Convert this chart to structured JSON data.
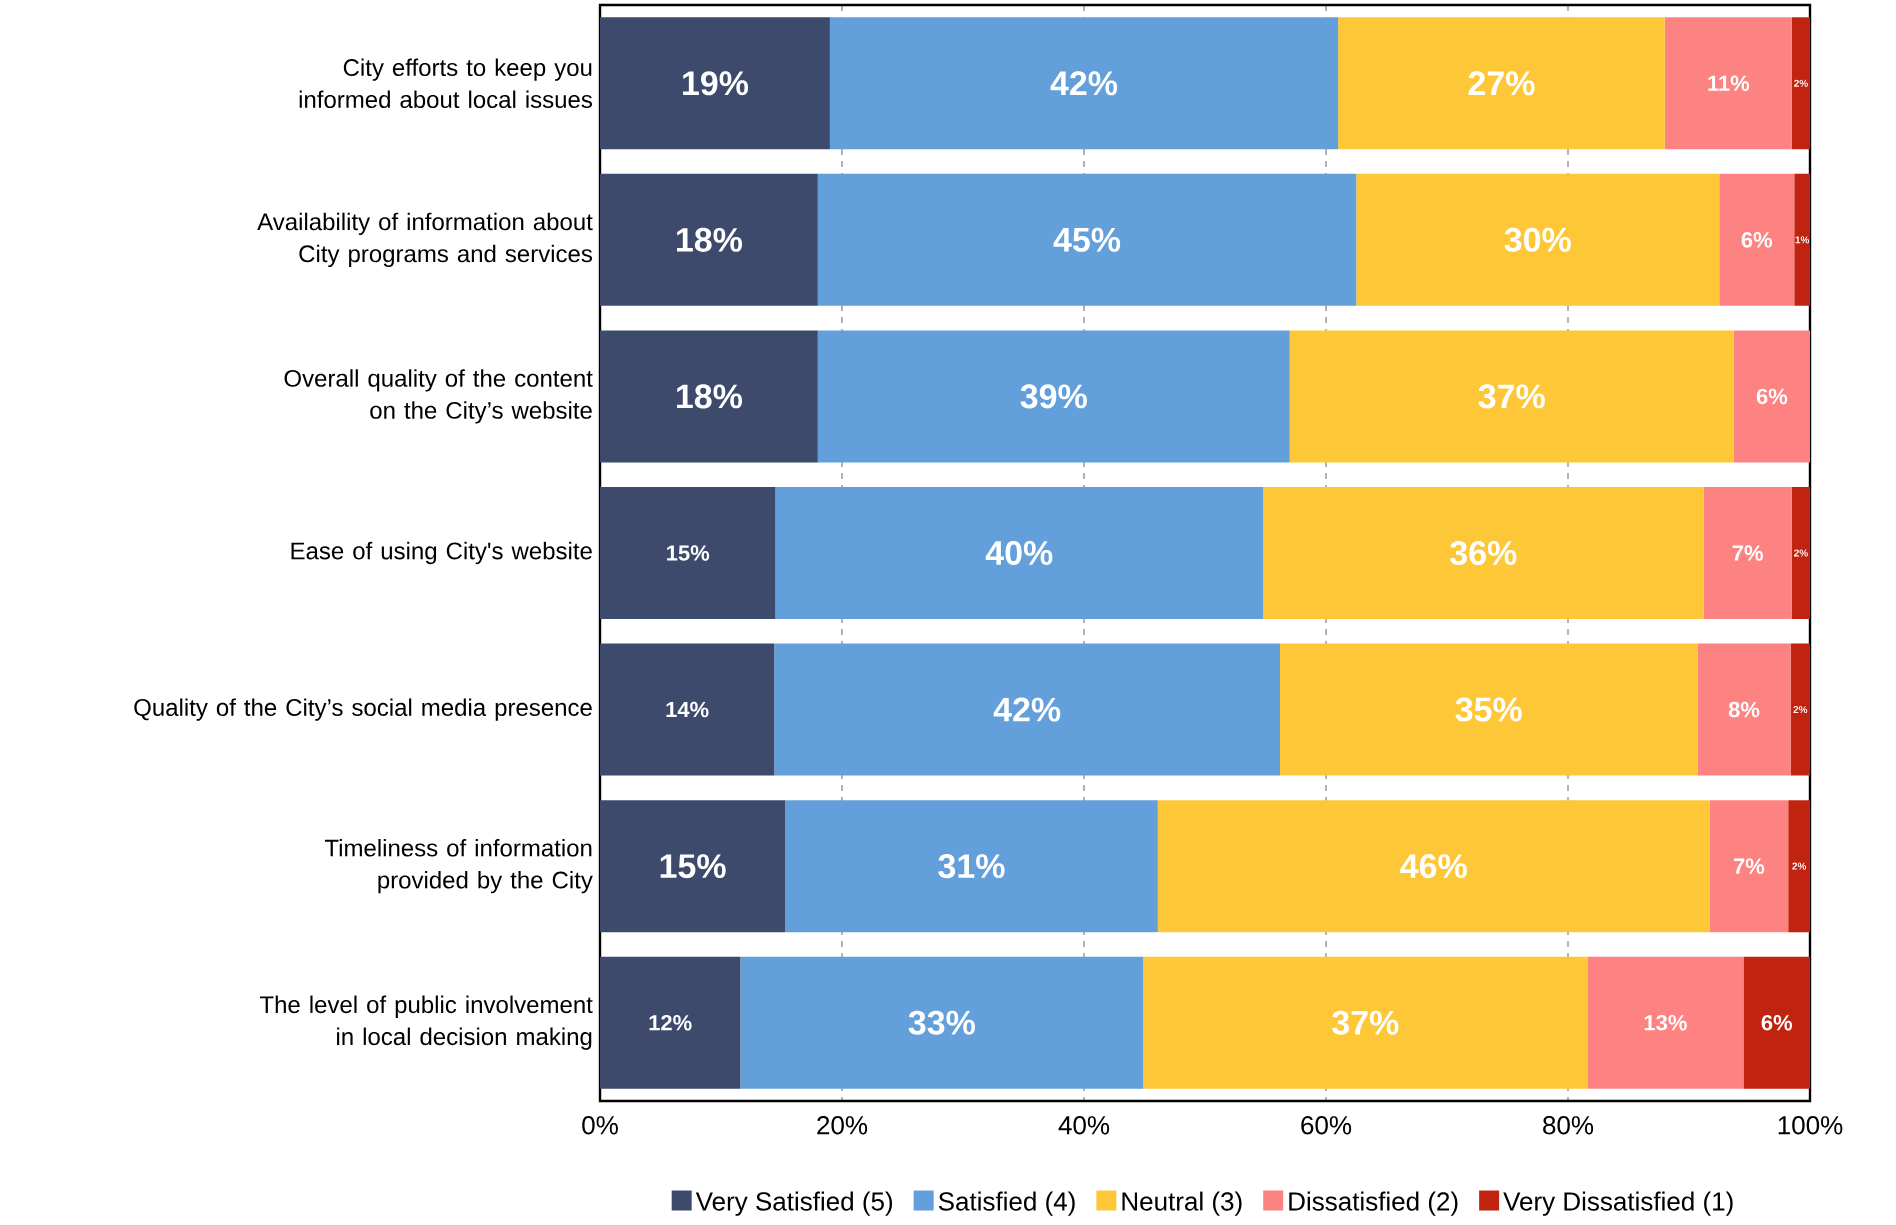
{
  "chart_data": {
    "type": "bar",
    "orientation": "horizontal",
    "stacked": true,
    "categories": [
      "City efforts to keep you informed about local issues",
      "Availability of information about City programs and services",
      "Overall quality of the content on the City’s website",
      "Ease of using City's website",
      "Quality of the City’s social media presence",
      "Timeliness of information provided by the City",
      "The level of public involvement in local decision making"
    ],
    "series": [
      {
        "name": "Very Satisfied (5)",
        "color": "#3d4a6b",
        "values": [
          19,
          18,
          18,
          14.5,
          14.4,
          15.3,
          11.6
        ],
        "value_labels": [
          "19%",
          "18%",
          "18%",
          "15%",
          "14%",
          "15%",
          "12%"
        ]
      },
      {
        "name": "Satisfied (4)",
        "color": "#629fdb",
        "values": [
          42,
          44.5,
          39,
          40.3,
          41.8,
          30.8,
          33.3
        ],
        "value_labels": [
          "42%",
          "45%",
          "39%",
          "40%",
          "42%",
          "31%",
          "33%"
        ]
      },
      {
        "name": "Neutral (3)",
        "color": "#fec737",
        "values": [
          27,
          30,
          36.7,
          36.4,
          34.5,
          45.6,
          36.7
        ],
        "value_labels": [
          "27%",
          "30%",
          "37%",
          "36%",
          "35%",
          "46%",
          "37%"
        ]
      },
      {
        "name": "Dissatisfied (2)",
        "color": "#fd8282",
        "values": [
          10.5,
          6.2,
          6.3,
          7.3,
          7.7,
          6.5,
          12.9
        ],
        "value_labels": [
          "11%",
          "6%",
          "6%",
          "7%",
          "8%",
          "7%",
          "13%"
        ]
      },
      {
        "name": "Very Dissatisfied (1)",
        "color": "#c0230f",
        "values": [
          1.5,
          1.3,
          null,
          1.5,
          1.6,
          1.8,
          5.5
        ],
        "value_labels": [
          "2%",
          "1%",
          null,
          "2%",
          "2%",
          "2%",
          "6%"
        ]
      }
    ],
    "xlim": [
      0,
      100
    ],
    "xticks": [
      {
        "value": 0,
        "label": "0%"
      },
      {
        "value": 20,
        "label": "20%"
      },
      {
        "value": 40,
        "label": "40%"
      },
      {
        "value": 60,
        "label": "60%"
      },
      {
        "value": 80,
        "label": "80%"
      },
      {
        "value": 100,
        "label": "100%"
      }
    ],
    "grid": "x",
    "legend": "bottom"
  }
}
